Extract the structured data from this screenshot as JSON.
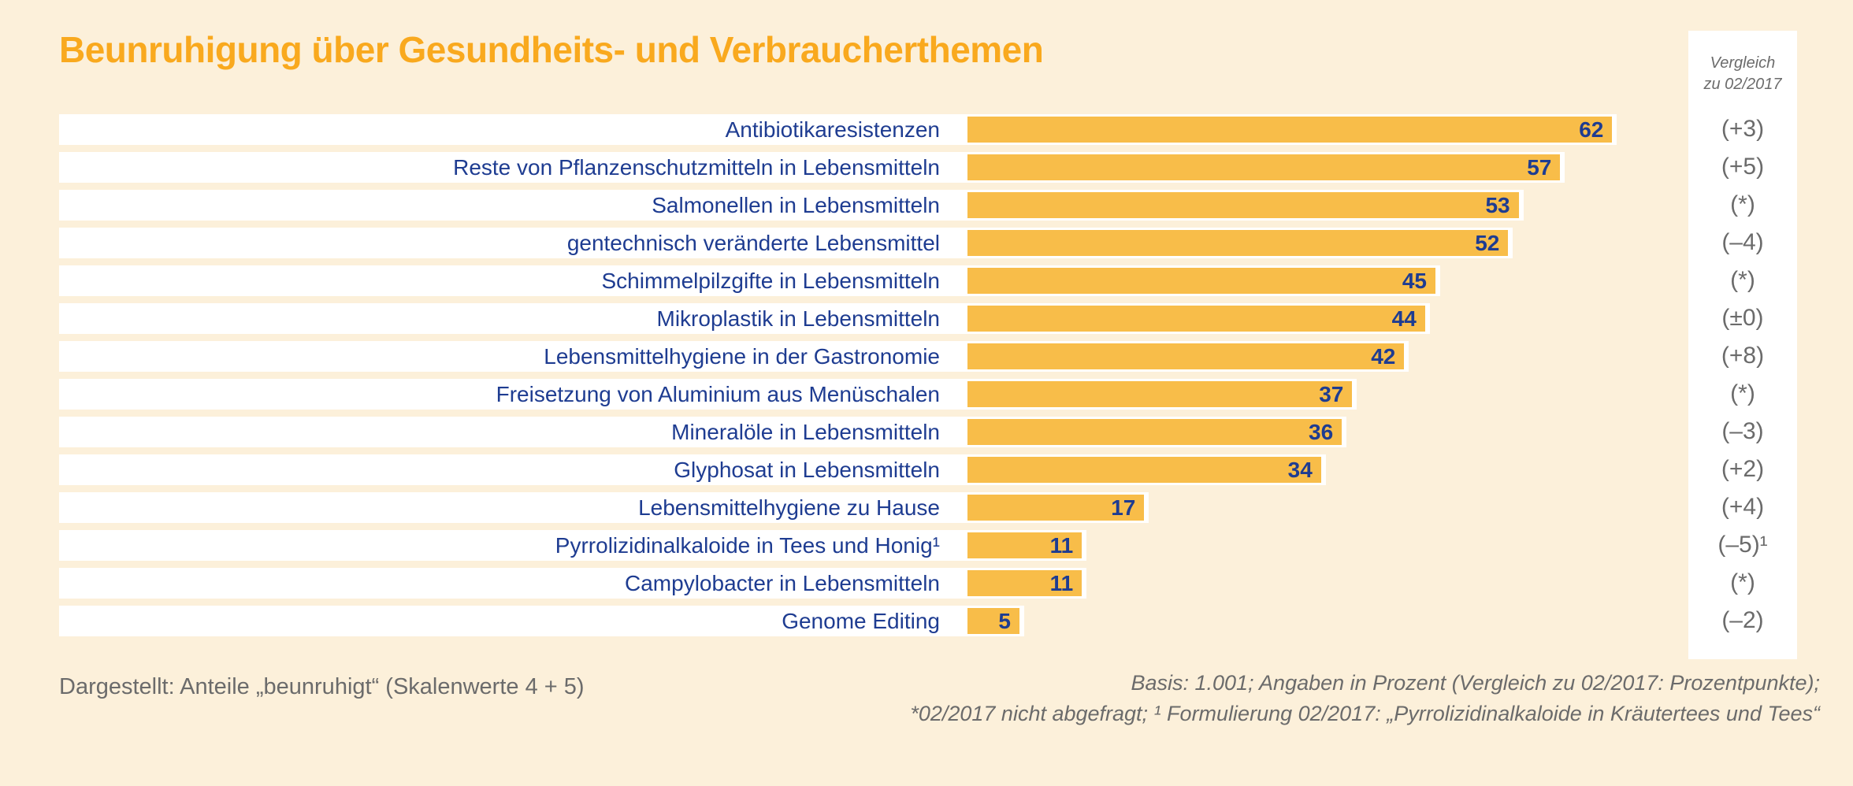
{
  "header": {
    "title": "Beunruhigung über Gesundheits- und Verbraucherthemen"
  },
  "comparison": {
    "header_line1": "Vergleich",
    "header_line2": "zu 02/2017"
  },
  "footnotes": {
    "left": "Dargestellt: Anteile „beunruhigt“ (Skalenwerte 4 + 5)",
    "right1": "Basis: 1.001; Angaben in Prozent (Vergleich zu 02/2017: Prozentpunkte);",
    "right2": "*02/2017 nicht abgefragt; ¹ Formulierung 02/2017: „Pyrrolizidinalkaloide in Kräutertees und Tees“"
  },
  "colors": {
    "background": "#FCF0DA",
    "row_band": "#FFFFFF",
    "bar": "#F8BD49",
    "title_orange": "#F9A91E",
    "label_blue": "#1E3C91",
    "note_gray": "#6B6B6B"
  },
  "chart_data": {
    "type": "bar",
    "orientation": "horizontal",
    "title": "Beunruhigung über Gesundheits- und Verbraucherthemen",
    "categories": [
      "Antibiotikaresistenzen",
      "Reste von Pflanzenschutzmitteln in Lebensmitteln",
      "Salmonellen in Lebensmitteln",
      "gentechnisch veränderte Lebensmittel",
      "Schimmelpilzgifte in Lebensmitteln",
      "Mikroplastik in Lebensmitteln",
      "Lebensmittelhygiene in der Gastronomie",
      "Freisetzung von Aluminium aus Menüschalen",
      "Mineralöle in Lebensmitteln",
      "Glyphosat in Lebensmitteln",
      "Lebensmittelhygiene zu Hause",
      "Pyrrolizidinalkaloide in Tees und Honig¹",
      "Campylobacter in Lebensmitteln",
      "Genome Editing"
    ],
    "values": [
      62,
      57,
      53,
      52,
      45,
      44,
      42,
      37,
      36,
      34,
      17,
      11,
      11,
      5
    ],
    "comparison_header": "Vergleich zu 02/2017",
    "comparison_values": [
      "(+3)",
      "(+5)",
      "(*)",
      "(–4)",
      "(*)",
      "(±0)",
      "(+8)",
      "(*)",
      "(–3)",
      "(+2)",
      "(+4)",
      "(–5)¹",
      "(*)",
      "(–2)"
    ],
    "value_labels_shown": true,
    "xlim": [
      0,
      65
    ],
    "grid": false,
    "units": "Prozent"
  }
}
